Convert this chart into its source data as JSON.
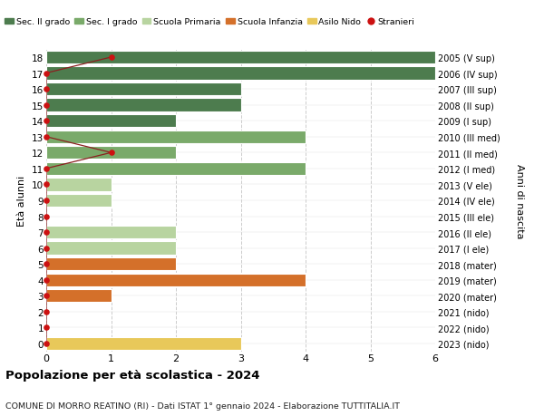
{
  "ages": [
    18,
    17,
    16,
    15,
    14,
    13,
    12,
    11,
    10,
    9,
    8,
    7,
    6,
    5,
    4,
    3,
    2,
    1,
    0
  ],
  "right_labels": [
    "2005 (V sup)",
    "2006 (IV sup)",
    "2007 (III sup)",
    "2008 (II sup)",
    "2009 (I sup)",
    "2010 (III med)",
    "2011 (II med)",
    "2012 (I med)",
    "2013 (V ele)",
    "2014 (IV ele)",
    "2015 (III ele)",
    "2016 (II ele)",
    "2017 (I ele)",
    "2018 (mater)",
    "2019 (mater)",
    "2020 (mater)",
    "2021 (nido)",
    "2022 (nido)",
    "2023 (nido)"
  ],
  "bar_values": [
    6,
    6,
    3,
    3,
    2,
    4,
    2,
    4,
    1,
    1,
    0,
    2,
    2,
    2,
    4,
    1,
    0,
    0,
    3
  ],
  "bar_colors": [
    "#4d7c4e",
    "#4d7c4e",
    "#4d7c4e",
    "#4d7c4e",
    "#4d7c4e",
    "#7aaa6a",
    "#7aaa6a",
    "#7aaa6a",
    "#b8d4a0",
    "#b8d4a0",
    "#b8d4a0",
    "#b8d4a0",
    "#b8d4a0",
    "#d4702a",
    "#d4702a",
    "#d4702a",
    "#e8c85a",
    "#e8c85a",
    "#e8c85a"
  ],
  "stranieri_x": [
    1,
    0,
    0,
    0,
    0,
    0,
    1,
    0,
    0,
    0,
    0,
    0,
    0,
    0,
    0,
    0,
    0,
    0,
    0
  ],
  "title_bold": "Popolazione per età scolastica - 2024",
  "subtitle": "COMUNE DI MORRO REATINO (RI) - Dati ISTAT 1° gennaio 2024 - Elaborazione TUTTITALIA.IT",
  "ylabel_left": "Età alunni",
  "ylabel_right": "Anni di nascita",
  "xlim": [
    0,
    6
  ],
  "legend_labels": [
    "Sec. II grado",
    "Sec. I grado",
    "Scuola Primaria",
    "Scuola Infanzia",
    "Asilo Nido",
    "Stranieri"
  ],
  "legend_colors": [
    "#4d7c4e",
    "#7aaa6a",
    "#b8d4a0",
    "#d4702a",
    "#e8c85a",
    "#cc1111"
  ],
  "bg_color": "#ffffff",
  "grid_color": "#cccccc",
  "bar_height": 0.82
}
